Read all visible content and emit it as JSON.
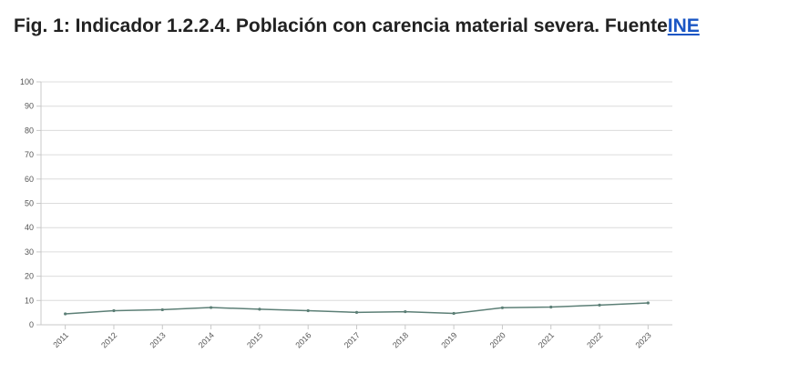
{
  "header": {
    "title_text": "Fig. 1: Indicador 1.2.2.4. Población con carencia material severa.  Fuente",
    "source_link": "INE"
  },
  "colors": {
    "line": "#5c7f76",
    "grid": "#dcdcdc",
    "axis": "#c8c8c8",
    "tick_text": "#555555",
    "link": "#1a56c4"
  },
  "chart_data": {
    "type": "line",
    "title": "",
    "xlabel": "",
    "ylabel": "",
    "categories": [
      "2011",
      "2012",
      "2013",
      "2014",
      "2015",
      "2016",
      "2017",
      "2018",
      "2019",
      "2020",
      "2021",
      "2022",
      "2023"
    ],
    "series": [
      {
        "values": [
          4.5,
          5.8,
          6.2,
          7.1,
          6.4,
          5.8,
          5.1,
          5.4,
          4.7,
          7.0,
          7.3,
          8.1,
          9.0
        ]
      }
    ],
    "ylim": [
      0,
      100
    ],
    "yticks": [
      0,
      10,
      20,
      30,
      40,
      50,
      60,
      70,
      80,
      90,
      100
    ],
    "grid": true,
    "legend": "none"
  }
}
